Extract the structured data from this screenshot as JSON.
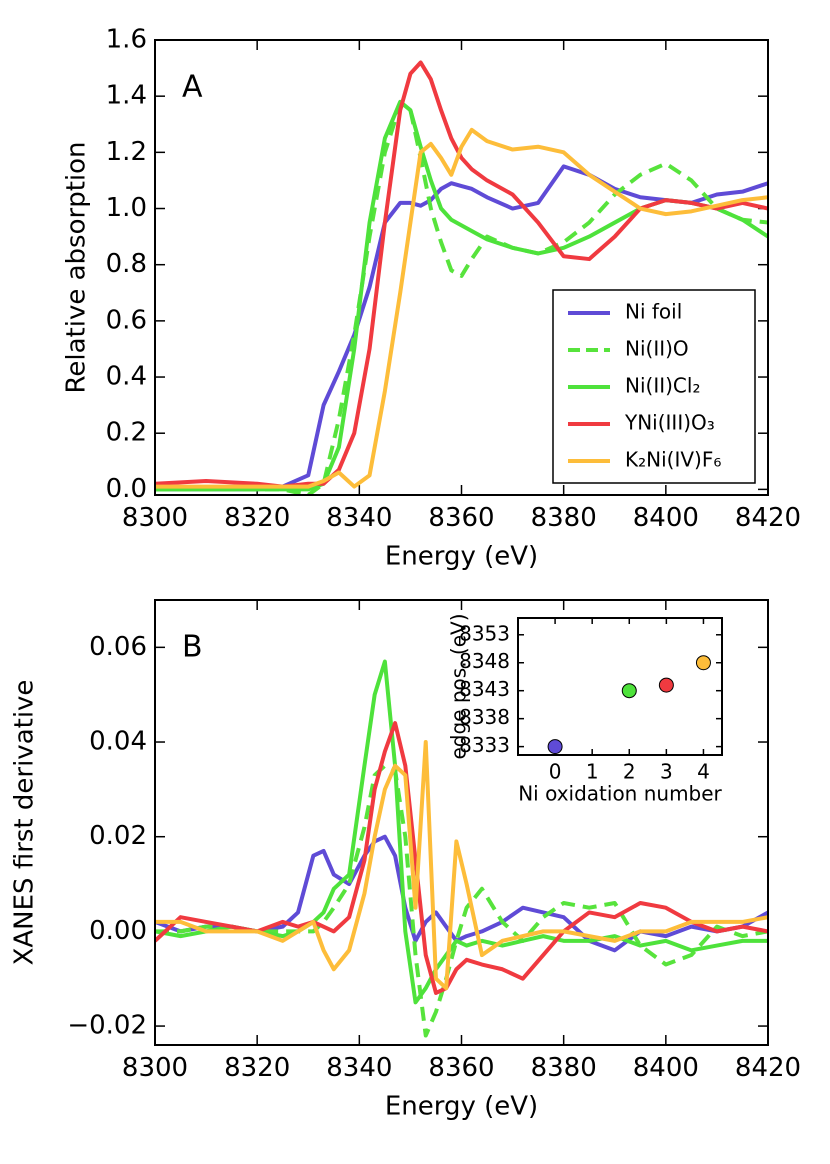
{
  "chart_data": [
    {
      "type": "line",
      "panel_label": "A",
      "xlabel": "Energy (eV)",
      "ylabel": "Relative absorption",
      "xlim": [
        8300,
        8420
      ],
      "ylim": [
        -0.02,
        1.6
      ],
      "xticks": [
        8300,
        8320,
        8340,
        8360,
        8380,
        8400,
        8420
      ],
      "yticks": [
        {
          "value": 0,
          "label": "0.0"
        },
        0.2,
        0.4,
        0.6,
        0.8,
        {
          "value": 1,
          "label": "1.0"
        },
        1.2,
        1.4,
        1.6
      ],
      "legend": "lower right",
      "x": [
        8300,
        8310,
        8320,
        8325,
        8330,
        8333,
        8336,
        8339,
        8342,
        8345,
        8348,
        8350,
        8352,
        8354,
        8356,
        8358,
        8360,
        8362,
        8365,
        8370,
        8375,
        8380,
        8385,
        8390,
        8395,
        8400,
        8405,
        8410,
        8415,
        8420
      ],
      "series": [
        {
          "name": "Ni foil",
          "color": "#5f4bd6",
          "linestyle": "solid",
          "values": [
            0.0,
            0.0,
            0.0,
            0.01,
            0.05,
            0.3,
            0.42,
            0.55,
            0.72,
            0.95,
            1.02,
            1.02,
            1.01,
            1.03,
            1.07,
            1.09,
            1.08,
            1.07,
            1.04,
            1.0,
            1.02,
            1.15,
            1.12,
            1.07,
            1.04,
            1.03,
            1.02,
            1.05,
            1.06,
            1.09
          ]
        },
        {
          "name": "Ni(II)O",
          "color": "#57e33c",
          "linestyle": "dashed",
          "values": [
            0.0,
            0.0,
            0.0,
            0.0,
            -0.02,
            0.02,
            0.25,
            0.55,
            0.9,
            1.2,
            1.37,
            1.35,
            1.18,
            1.0,
            0.88,
            0.78,
            0.76,
            0.82,
            0.9,
            0.86,
            0.84,
            0.88,
            0.95,
            1.05,
            1.12,
            1.16,
            1.1,
            1.0,
            0.96,
            0.95
          ]
        },
        {
          "name": "Ni(II)Cl₂",
          "color": "#4ee23b",
          "linestyle": "solid",
          "values": [
            0.0,
            0.0,
            0.0,
            0.0,
            0.0,
            0.02,
            0.15,
            0.5,
            0.95,
            1.25,
            1.38,
            1.35,
            1.22,
            1.1,
            1.0,
            0.96,
            0.94,
            0.92,
            0.89,
            0.86,
            0.84,
            0.86,
            0.9,
            0.95,
            1.0,
            1.03,
            1.02,
            1.0,
            0.96,
            0.9
          ]
        },
        {
          "name": "YNi(III)O₃",
          "color": "#f03a40",
          "linestyle": "solid",
          "values": [
            0.02,
            0.03,
            0.02,
            0.01,
            0.02,
            0.02,
            0.07,
            0.2,
            0.5,
            0.95,
            1.35,
            1.48,
            1.52,
            1.46,
            1.35,
            1.25,
            1.18,
            1.14,
            1.1,
            1.05,
            0.95,
            0.83,
            0.82,
            0.9,
            1.0,
            1.03,
            1.02,
            1.0,
            1.02,
            1.0
          ]
        },
        {
          "name": "K₂Ni(IV)F₆",
          "color": "#fdbd3a",
          "linestyle": "solid",
          "values": [
            0.01,
            0.01,
            0.01,
            0.01,
            0.01,
            0.03,
            0.06,
            0.01,
            0.05,
            0.35,
            0.7,
            0.95,
            1.2,
            1.23,
            1.18,
            1.12,
            1.22,
            1.28,
            1.24,
            1.21,
            1.22,
            1.2,
            1.12,
            1.06,
            1.0,
            0.98,
            0.99,
            1.01,
            1.03,
            1.04
          ]
        }
      ]
    },
    {
      "type": "line",
      "panel_label": "B",
      "xlabel": "Energy (eV)",
      "ylabel": "XANES first derivative",
      "xlim": [
        8300,
        8420
      ],
      "ylim": [
        -0.024,
        0.07
      ],
      "xticks": [
        8300,
        8320,
        8340,
        8360,
        8380,
        8400,
        8420
      ],
      "yticks": [
        {
          "value": -0.02,
          "label": "−0.02"
        },
        {
          "value": 0,
          "label": "0.00"
        },
        0.02,
        0.04,
        0.06
      ],
      "x": [
        8300,
        8305,
        8310,
        8315,
        8320,
        8325,
        8328,
        8331,
        8333,
        8335,
        8338,
        8341,
        8343,
        8345,
        8347,
        8349,
        8351,
        8353,
        8355,
        8357,
        8359,
        8361,
        8364,
        8368,
        8372,
        8376,
        8380,
        8385,
        8390,
        8395,
        8400,
        8405,
        8410,
        8415,
        8420
      ],
      "series": [
        {
          "name": "Ni foil",
          "color": "#5f4bd6",
          "linestyle": "solid",
          "values": [
            0.002,
            0,
            0.001,
            0.001,
            0,
            0.001,
            0.004,
            0.016,
            0.017,
            0.012,
            0.01,
            0.016,
            0.019,
            0.02,
            0.016,
            0.005,
            -0.002,
            0.002,
            0.004,
            0.001,
            -0.002,
            -0.001,
            0,
            0.002,
            0.005,
            0.004,
            0.003,
            -0.002,
            -0.004,
            0,
            -0.001,
            0.001,
            0,
            0.001,
            0.004
          ]
        },
        {
          "name": "Ni(II)O",
          "color": "#57e33c",
          "linestyle": "dashed",
          "values": [
            0,
            0,
            0.001,
            0.001,
            0,
            0,
            0,
            0,
            0.002,
            0.005,
            0.01,
            0.022,
            0.033,
            0.035,
            0.034,
            0.02,
            -0.005,
            -0.022,
            -0.017,
            -0.01,
            -0.002,
            0.005,
            0.009,
            0.002,
            -0.002,
            0.003,
            0.006,
            0.005,
            0.006,
            -0.003,
            -0.007,
            -0.005,
            0.001,
            -0.001,
            0
          ]
        },
        {
          "name": "Ni(II)Cl₂",
          "color": "#4ee23b",
          "linestyle": "solid",
          "values": [
            0,
            -0.001,
            0,
            0.001,
            0,
            -0.001,
            0,
            0.002,
            0.004,
            0.009,
            0.012,
            0.035,
            0.05,
            0.057,
            0.035,
            0.0,
            -0.015,
            -0.012,
            -0.008,
            -0.005,
            -0.002,
            -0.003,
            -0.002,
            -0.003,
            -0.002,
            -0.001,
            -0.002,
            -0.002,
            -0.001,
            -0.003,
            -0.002,
            -0.004,
            -0.003,
            -0.002,
            -0.002
          ]
        },
        {
          "name": "YNi(III)O₃",
          "color": "#f03a40",
          "linestyle": "solid",
          "values": [
            -0.002,
            0.003,
            0.002,
            0.001,
            0,
            0.002,
            0.001,
            0.002,
            0.001,
            0,
            0.003,
            0.015,
            0.03,
            0.038,
            0.044,
            0.035,
            0.015,
            -0.005,
            -0.013,
            -0.012,
            -0.008,
            -0.006,
            -0.007,
            -0.008,
            -0.01,
            -0.005,
            0.0,
            0.004,
            0.003,
            0.006,
            0.005,
            0.002,
            0,
            0.001,
            0
          ]
        },
        {
          "name": "K₂Ni(IV)F₆",
          "color": "#fdbd3a",
          "linestyle": "solid",
          "values": [
            0.002,
            0.002,
            0,
            0,
            0,
            -0.002,
            0,
            0.002,
            -0.004,
            -0.008,
            -0.004,
            0.008,
            0.02,
            0.03,
            0.035,
            0.033,
            0.005,
            0.04,
            -0.01,
            -0.012,
            0.019,
            0.01,
            -0.005,
            -0.002,
            -0.001,
            0,
            0,
            -0.001,
            -0.002,
            0,
            0,
            0.002,
            0.002,
            0.002,
            0.003
          ]
        }
      ]
    },
    {
      "type": "scatter",
      "xlabel": "Ni oxidation number",
      "ylabel": "edge pos. (eV)",
      "xlim": [
        -1,
        4.5
      ],
      "ylim": [
        8331.5,
        8356
      ],
      "xticks": [
        0,
        1,
        2,
        3,
        4
      ],
      "yticks": [
        8333,
        8338,
        8343,
        8348,
        8353
      ],
      "x": [
        0,
        2,
        3,
        4
      ],
      "values": [
        8333,
        8343,
        8344,
        8348
      ],
      "colors": [
        "#5f4bd6",
        "#4ee23b",
        "#f03a40",
        "#fdbd3a"
      ]
    }
  ]
}
